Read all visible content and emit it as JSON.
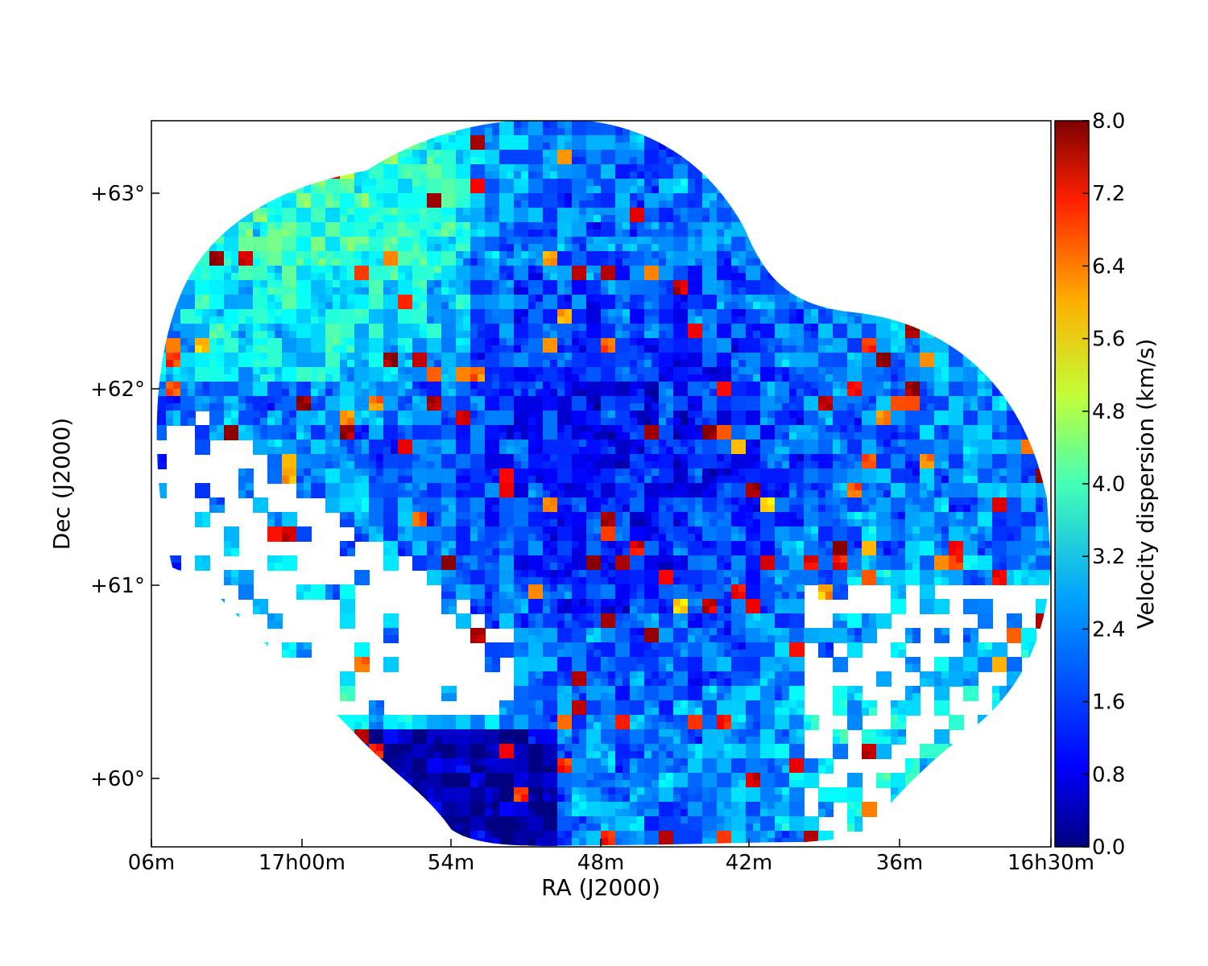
{
  "chart_data": {
    "type": "heatmap",
    "title": "",
    "xlabel": "RA (J2000)",
    "ylabel": "Dec (J2000)",
    "colorbar_label": "Velocity dispersion (km/s)",
    "colormap": "jet",
    "x_ticks": [
      "06m",
      "17h00m",
      "54m",
      "48m",
      "42m",
      "36m",
      "16h30m"
    ],
    "y_ticks": [
      "+60°",
      "+61°",
      "+62°",
      "+63°"
    ],
    "colorbar_ticks": [
      "0.0",
      "0.8",
      "1.6",
      "2.4",
      "3.2",
      "4.0",
      "4.8",
      "5.6",
      "6.4",
      "7.2",
      "8.0"
    ],
    "colorbar_range": [
      0.0,
      8.0
    ],
    "grid": false,
    "colors": {
      "dominant_low": "#0a3cff",
      "mid": "#1e9bff",
      "high": "#b40000",
      "background": "#ffffff",
      "axes": "#000000"
    }
  }
}
